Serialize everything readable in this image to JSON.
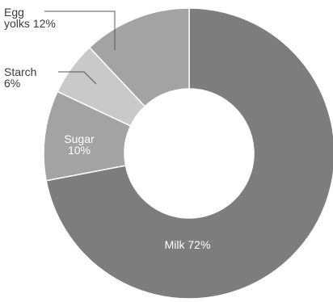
{
  "chart_data": {
    "type": "pie",
    "variant": "donut",
    "title": "",
    "categories": [
      "Milk",
      "Sugar",
      "Starch",
      "Egg yolks"
    ],
    "values": [
      72,
      10,
      6,
      12
    ],
    "unit": "%",
    "colors": [
      "#7d7d7d",
      "#a3a3a3",
      "#c9c9c9",
      "#a3a3a3"
    ],
    "labels": [
      {
        "lines": [
          "Milk 72%"
        ]
      },
      {
        "lines": [
          "Sugar",
          "10%"
        ]
      },
      {
        "lines": [
          "Starch",
          "6%"
        ]
      },
      {
        "lines": [
          "Egg",
          "yolks 12%"
        ]
      }
    ],
    "legend": "none",
    "start": "top",
    "direction": "clockwise"
  }
}
